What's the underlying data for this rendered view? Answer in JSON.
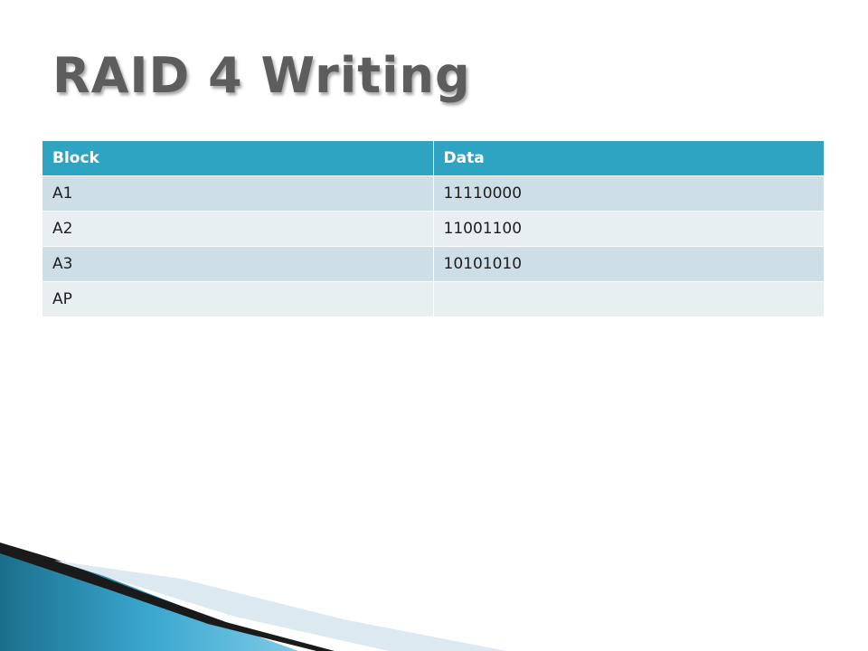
{
  "header": {
    "title": "RAID 4 Writing"
  },
  "table": {
    "header": [
      "Block",
      "Data"
    ],
    "rows": [
      [
        "A1",
        "11110000"
      ],
      [
        "A2",
        "11001100"
      ],
      [
        "A3",
        "10101010"
      ],
      [
        "AP"
      ]
    ]
  }
}
